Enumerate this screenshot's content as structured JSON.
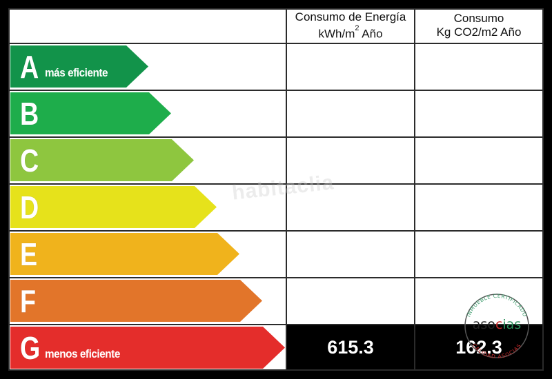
{
  "headers": {
    "energy_line1": "Consumo de Energía",
    "energy_line2": "kWh/m",
    "energy_sup": "2",
    "energy_line2_suffix": " Año",
    "co2_line1": "Consumo",
    "co2_line2": "Kg CO2/m2 Año"
  },
  "ratings": [
    {
      "letter": "A",
      "sub": "más eficiente",
      "color": "#12934a"
    },
    {
      "letter": "B",
      "sub": "",
      "color": "#1ead4b"
    },
    {
      "letter": "C",
      "sub": "",
      "color": "#8ec63f"
    },
    {
      "letter": "D",
      "sub": "",
      "color": "#e6e21b"
    },
    {
      "letter": "E",
      "sub": "",
      "color": "#f0b31c"
    },
    {
      "letter": "F",
      "sub": "",
      "color": "#e2752a"
    },
    {
      "letter": "G",
      "sub": "menos eficiente",
      "color": "#e42d2b"
    }
  ],
  "values": {
    "energy": "615.3",
    "co2": "162.3"
  },
  "watermark": "habitaclia",
  "stamp": {
    "top_text": "INMUEBLE CERTIFICADO",
    "brand_prefix": "aso",
    "brand_mid": "c",
    "brand_suffix": "ias",
    "bottom_text": "CALIDAD ASOCIAS"
  }
}
